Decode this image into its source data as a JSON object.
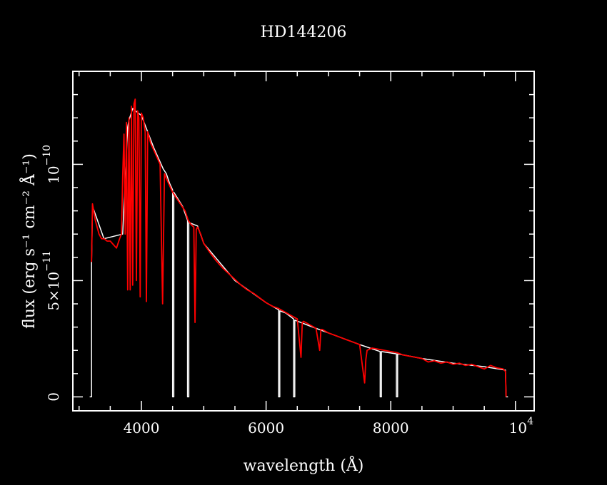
{
  "chart_data": {
    "type": "line",
    "title": "HD144206",
    "xlabel": "wavelength (Å)",
    "ylabel": "flux (erg s⁻¹ cm⁻² Å⁻¹)",
    "xlim": [
      2900,
      10300
    ],
    "ylim": [
      -6e-12,
      1.4e-10
    ],
    "x_ticks": [
      {
        "value": 4000,
        "label": "4000"
      },
      {
        "value": 6000,
        "label": "6000"
      },
      {
        "value": 8000,
        "label": "8000"
      }
    ],
    "x_end_label": {
      "value": 10000,
      "base": "10",
      "exp": "4"
    },
    "y_ticks": [
      {
        "value": 0,
        "label": "0"
      },
      {
        "value": 5e-11,
        "mant": "5×10",
        "exp": "−11"
      },
      {
        "value": 1e-10,
        "mant": "10",
        "exp": "−10"
      }
    ],
    "colors": {
      "background": "#000000",
      "axes": "#ffffff",
      "reference": "#ffffff",
      "spectrum": "#ff0000"
    },
    "series": [
      {
        "color": "#ff0000",
        "x": [
          3200,
          3215,
          3235,
          3260,
          3290,
          3320,
          3360,
          3400,
          3450,
          3500,
          3550,
          3600,
          3650,
          3680,
          3700,
          3720,
          3740,
          3760,
          3780,
          3800,
          3820,
          3840,
          3860,
          3880,
          3900,
          3920,
          3940,
          3960,
          3980,
          4000,
          4030,
          4060,
          4080,
          4100,
          4120,
          4150,
          4200,
          4250,
          4300,
          4340,
          4370,
          4400,
          4450,
          4500,
          4550,
          4600,
          4650,
          4700,
          4750,
          4800,
          4840,
          4860,
          4880,
          4900,
          4950,
          5000,
          5100,
          5200,
          5300,
          5400,
          5500,
          5600,
          5700,
          5800,
          5900,
          6000,
          6100,
          6200,
          6300,
          6400,
          6500,
          6560,
          6580,
          6600,
          6700,
          6800,
          6860,
          6880,
          6900,
          7000,
          7100,
          7200,
          7300,
          7400,
          7500,
          7580,
          7600,
          7620,
          7700,
          7800,
          7900,
          8000,
          8100,
          8200,
          8300,
          8400,
          8500,
          8600,
          8700,
          8800,
          8900,
          9000,
          9100,
          9200,
          9300,
          9400,
          9500,
          9600,
          9700,
          9800,
          9840,
          9850
        ],
        "y": [
          5.8e-11,
          8.3e-11,
          8e-11,
          7.6e-11,
          7.3e-11,
          7e-11,
          6.8e-11,
          6.8e-11,
          6.7e-11,
          6.7e-11,
          6.55e-11,
          6.4e-11,
          6.8e-11,
          7e-11,
          9.5e-11,
          1.13e-10,
          7e-11,
          1.18e-10,
          4.6e-11,
          1.2e-10,
          4.6e-11,
          1.25e-10,
          4.8e-11,
          1.26e-10,
          1.28e-10,
          5e-11,
          1.23e-10,
          1.2e-10,
          4.3e-11,
          1.22e-10,
          1.2e-10,
          1.14e-10,
          4.1e-11,
          1.14e-10,
          1.12e-10,
          1.09e-10,
          1.06e-10,
          1.03e-10,
          1e-10,
          4e-11,
          9.6e-11,
          9.4e-11,
          9.1e-11,
          8.8e-11,
          8.6e-11,
          8.4e-11,
          8.2e-11,
          8e-11,
          7.6e-11,
          7.4e-11,
          7.3e-11,
          3.2e-11,
          7.2e-11,
          7.3e-11,
          7e-11,
          6.6e-11,
          6.2e-11,
          5.85e-11,
          5.55e-11,
          5.3e-11,
          5.05e-11,
          4.8e-11,
          4.6e-11,
          4.45e-11,
          4.25e-11,
          4.05e-11,
          3.9e-11,
          3.8e-11,
          3.65e-11,
          3.5e-11,
          3.35e-11,
          1.7e-11,
          3.2e-11,
          3.25e-11,
          3.1e-11,
          2.95e-11,
          2e-11,
          2.9e-11,
          2.9e-11,
          2.75e-11,
          2.65e-11,
          2.55e-11,
          2.45e-11,
          2.35e-11,
          2.25e-11,
          6e-12,
          1.6e-11,
          2e-11,
          2.1e-11,
          2.05e-11,
          2e-11,
          1.95e-11,
          1.9e-11,
          1.8e-11,
          1.75e-11,
          1.7e-11,
          1.65e-11,
          1.5e-11,
          1.55e-11,
          1.45e-11,
          1.5e-11,
          1.4e-11,
          1.45e-11,
          1.35e-11,
          1.4e-11,
          1.3e-11,
          1.2e-11,
          1.35e-11,
          1.25e-11,
          1.2e-11,
          1.1e-11,
          0.0
        ]
      },
      {
        "color": "#ffffff",
        "x": [
          3170,
          3200,
          3200,
          3215,
          3400,
          3700,
          3780,
          3800,
          3860,
          4000,
          4200,
          4350,
          4400,
          4450,
          4500,
          4500,
          4520,
          4520,
          4660,
          4740,
          4740,
          4760,
          4760,
          4900,
          5000,
          5500,
          6000,
          6200,
          6200,
          6220,
          6220,
          6320,
          6440,
          6440,
          6460,
          6460,
          6700,
          7000,
          7500,
          7830,
          7830,
          7850,
          7850,
          8090,
          8090,
          8110,
          8110,
          8500,
          9000,
          9500,
          9840,
          9850,
          9880
        ],
        "y": [
          0.0,
          0.0,
          5.8e-11,
          8.2e-11,
          6.8e-11,
          7e-11,
          1.16e-10,
          1.19e-10,
          1.24e-10,
          1.21e-10,
          1.07e-10,
          9.8e-11,
          9.6e-11,
          9.2e-11,
          8.9e-11,
          0.0,
          0.0,
          8.8e-11,
          8.2e-11,
          7.6e-11,
          0.0,
          0.0,
          7.5e-11,
          7.35e-11,
          6.6e-11,
          5e-11,
          4.05e-11,
          3.75e-11,
          0.0,
          0.0,
          3.7e-11,
          3.6e-11,
          3.35e-11,
          0.0,
          0.0,
          3.3e-11,
          3.05e-11,
          2.75e-11,
          2.25e-11,
          1.95e-11,
          0.0,
          0.0,
          1.95e-11,
          1.85e-11,
          0.0,
          0.0,
          1.85e-11,
          1.65e-11,
          1.45e-11,
          1.3e-11,
          1.15e-11,
          0.0,
          0.0
        ]
      }
    ]
  }
}
